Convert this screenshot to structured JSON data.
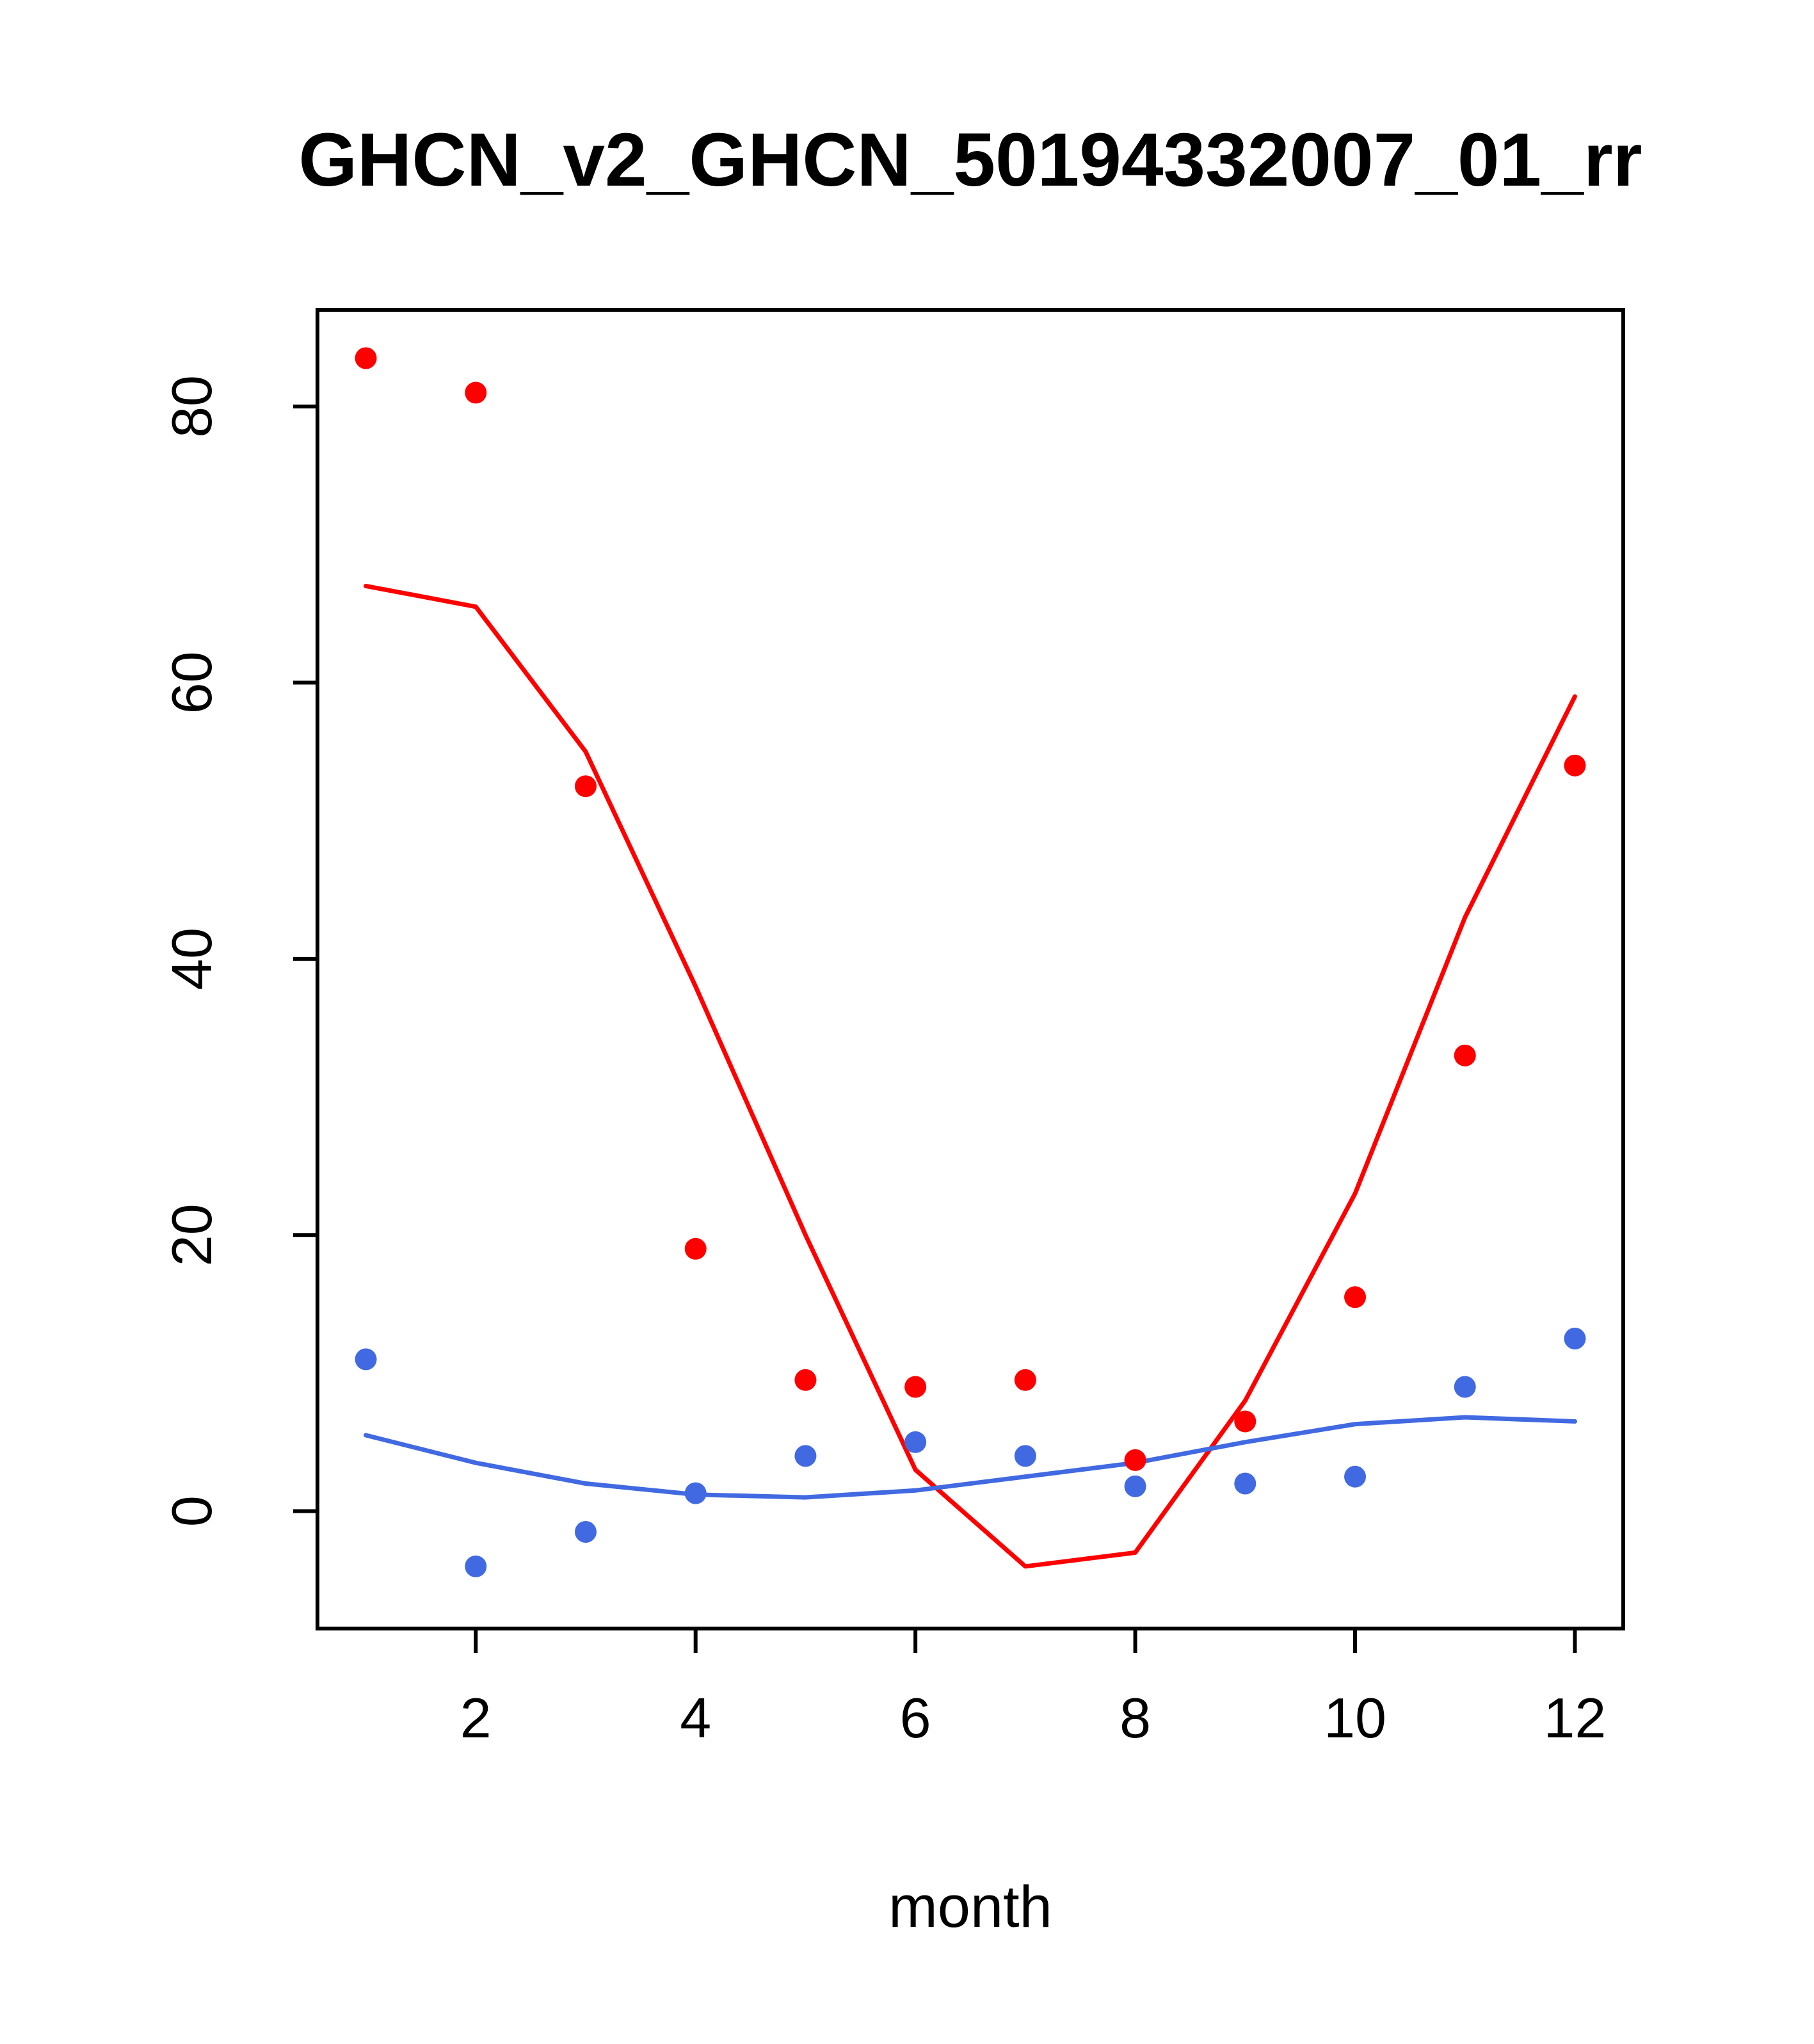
{
  "chart_data": {
    "type": "scatter",
    "title": "GHCN_v2_GHCN_50194332007_01_rr",
    "xlabel": "month",
    "ylabel": "",
    "x": [
      1,
      2,
      3,
      4,
      5,
      6,
      7,
      8,
      9,
      10,
      11,
      12
    ],
    "xticks": [
      2,
      4,
      6,
      8,
      10,
      12
    ],
    "yticks": [
      0,
      20,
      40,
      60,
      80
    ],
    "xlim": [
      0.56,
      12.44
    ],
    "ylim": [
      -8.5,
      87
    ],
    "grid": false,
    "legend": "none",
    "colors": {
      "red": "#ff0000",
      "blue": "#4169e1",
      "axis": "#000000"
    },
    "series": [
      {
        "name": "red-line",
        "kind": "line",
        "color": "#ff0000",
        "values": [
          67,
          65.5,
          55,
          38,
          20,
          3,
          -4,
          -3,
          8,
          23,
          43,
          59
        ]
      },
      {
        "name": "blue-line",
        "kind": "line",
        "color": "#4169e1",
        "values": [
          5.5,
          3.5,
          2,
          1.2,
          1,
          1.5,
          2.5,
          3.5,
          5,
          6.3,
          6.8,
          6.5
        ]
      },
      {
        "name": "red-points",
        "kind": "scatter",
        "color": "#ff0000",
        "values": [
          83.5,
          81,
          52.5,
          19,
          9.5,
          9,
          9.5,
          3.7,
          6.5,
          15.5,
          33,
          54
        ]
      },
      {
        "name": "blue-points",
        "kind": "scatter",
        "color": "#4169e1",
        "values": [
          11,
          -4,
          -1.5,
          1.3,
          4,
          5,
          4,
          1.8,
          2,
          2.5,
          9,
          12.5
        ]
      }
    ]
  }
}
